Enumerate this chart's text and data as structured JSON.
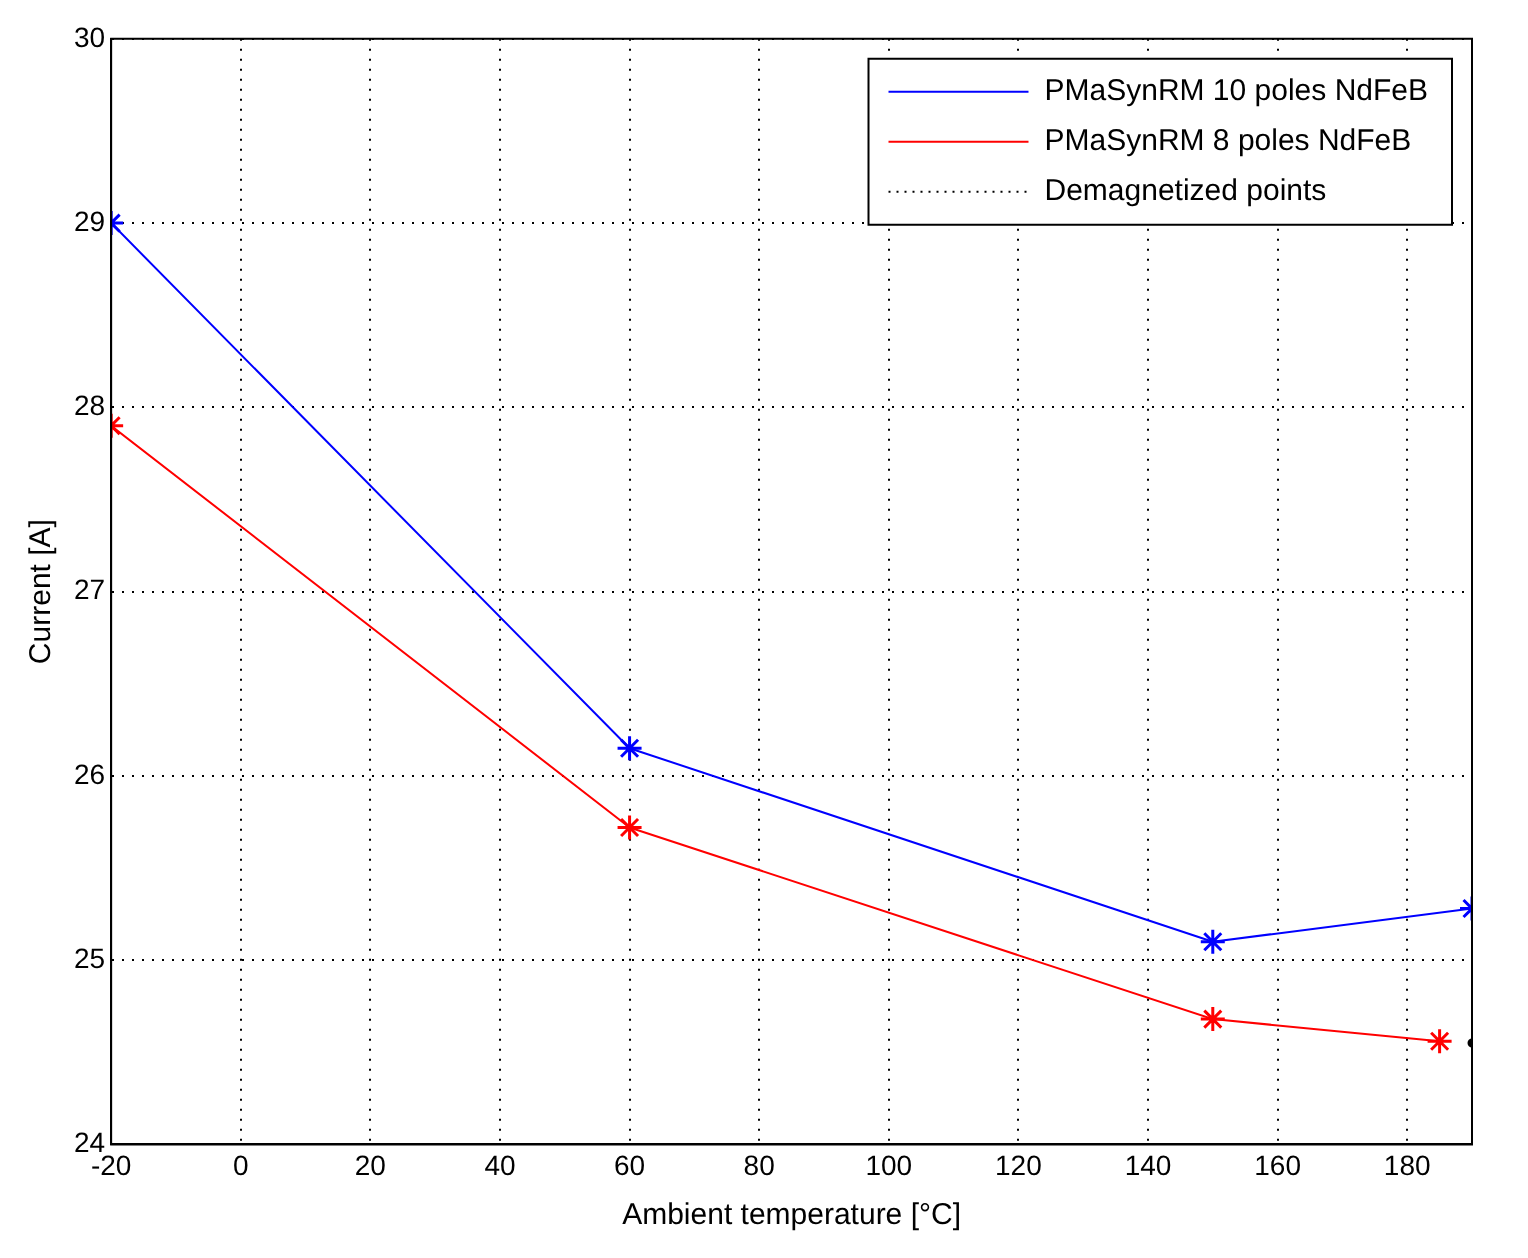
{
  "chart_data": {
    "type": "line",
    "xlabel": "Ambient temperature [°C]",
    "ylabel": "Current [A]",
    "xlim": [
      -20,
      190
    ],
    "xticks": [
      -20,
      0,
      20,
      40,
      60,
      80,
      100,
      120,
      140,
      160,
      180
    ],
    "ylim": [
      24,
      30
    ],
    "yticks": [
      24,
      25,
      26,
      27,
      28,
      29,
      30
    ],
    "grid": true,
    "legend": "top right",
    "marker": "cross",
    "line_style": "solid",
    "series": [
      {
        "name": "PMaSynRM 10 poles NdFeB",
        "color": "#0000ff",
        "x": [
          -20,
          60,
          150,
          190
        ],
        "values": [
          29,
          26.15,
          25.1,
          25.28
        ]
      },
      {
        "name": "PMaSynRM 8 poles NdFeB",
        "color": "#ff0000",
        "x": [
          -20,
          60,
          150,
          185
        ],
        "values": [
          27.9,
          25.72,
          24.68,
          24.56
        ]
      },
      {
        "name": "Demagnetized points",
        "color": "#000000",
        "x": [
          190
        ],
        "values": [
          24.55
        ],
        "marker": "circle",
        "line_style": "dotted"
      }
    ]
  }
}
